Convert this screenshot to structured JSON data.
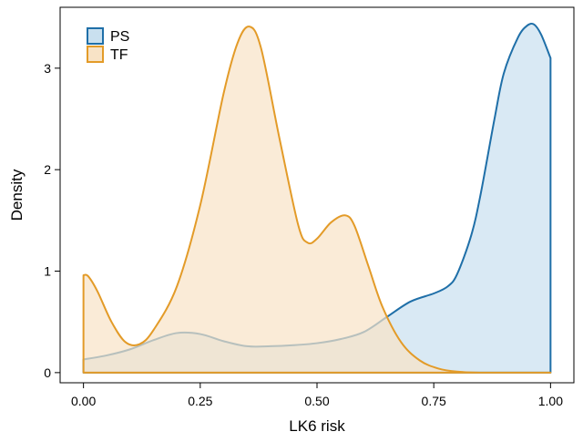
{
  "chart_data": {
    "type": "area",
    "xlabel": "LK6 risk",
    "ylabel": "Density",
    "xlim": [
      -0.05,
      1.05
    ],
    "ylim": [
      -0.1,
      3.6
    ],
    "xticks": [
      0.0,
      0.25,
      0.5,
      0.75,
      1.0
    ],
    "xtick_labels": [
      "0.00",
      "0.25",
      "0.50",
      "0.75",
      "1.00"
    ],
    "yticks": [
      0,
      1,
      2,
      3
    ],
    "ytick_labels": [
      "0",
      "1",
      "2",
      "3"
    ],
    "grid": false,
    "legend_position": "top-left",
    "series": [
      {
        "name": "PS",
        "stroke": "#1f6fa8",
        "fill": "#c9e0ef",
        "x": [
          0.0,
          0.05,
          0.1,
          0.15,
          0.2,
          0.25,
          0.3,
          0.35,
          0.4,
          0.45,
          0.5,
          0.55,
          0.6,
          0.65,
          0.7,
          0.75,
          0.78,
          0.8,
          0.83,
          0.85,
          0.88,
          0.9,
          0.93,
          0.95,
          0.965,
          0.98,
          1.0
        ],
        "y": [
          0.13,
          0.17,
          0.23,
          0.32,
          0.39,
          0.38,
          0.31,
          0.26,
          0.26,
          0.27,
          0.29,
          0.33,
          0.4,
          0.55,
          0.7,
          0.78,
          0.85,
          0.97,
          1.35,
          1.75,
          2.5,
          2.95,
          3.3,
          3.42,
          3.43,
          3.33,
          3.1
        ]
      },
      {
        "name": "TF",
        "stroke": "#e39b28",
        "fill": "#f8e3c6",
        "x": [
          0.0,
          0.01,
          0.03,
          0.06,
          0.09,
          0.12,
          0.15,
          0.2,
          0.25,
          0.3,
          0.33,
          0.355,
          0.38,
          0.42,
          0.46,
          0.48,
          0.5,
          0.53,
          0.56,
          0.58,
          0.61,
          0.64,
          0.68,
          0.72,
          0.76,
          0.8,
          0.85,
          0.9,
          1.0
        ],
        "y": [
          0.96,
          0.95,
          0.8,
          0.5,
          0.3,
          0.28,
          0.42,
          0.85,
          1.65,
          2.75,
          3.25,
          3.41,
          3.2,
          2.3,
          1.45,
          1.28,
          1.32,
          1.48,
          1.55,
          1.45,
          1.05,
          0.65,
          0.3,
          0.12,
          0.04,
          0.01,
          0.0,
          0.0,
          0.0
        ]
      }
    ]
  }
}
